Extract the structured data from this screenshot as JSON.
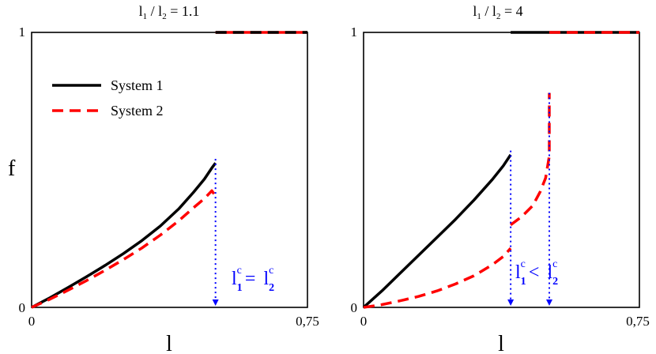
{
  "figure": {
    "ylabel": "f"
  },
  "chart_data": [
    {
      "type": "line",
      "title_base": "l",
      "title_sub1": "1",
      "title_mid": " / l",
      "title_sub2": "2",
      "title_tail": " = 1.1",
      "xlabel": "l",
      "ylabel": "f",
      "xlim": [
        0,
        0.75
      ],
      "ylim": [
        0,
        1
      ],
      "xticks": [
        "0",
        "0,75"
      ],
      "yticks": [
        "0",
        "1"
      ],
      "legend_position": "top-left",
      "series": [
        {
          "name": "System 1",
          "color": "#000000",
          "dash": "solid",
          "x": [
            0,
            0.05,
            0.1,
            0.15,
            0.2,
            0.25,
            0.3,
            0.35,
            0.4,
            0.44,
            0.47,
            0.49,
            0.5
          ],
          "y": [
            0,
            0.035,
            0.073,
            0.112,
            0.153,
            0.196,
            0.243,
            0.296,
            0.358,
            0.418,
            0.467,
            0.507,
            0.525
          ]
        },
        {
          "name": "System 2",
          "color": "#ff0000",
          "dash": "dashed",
          "x": [
            0,
            0.05,
            0.1,
            0.15,
            0.2,
            0.25,
            0.3,
            0.35,
            0.4,
            0.44,
            0.47,
            0.49,
            0.5
          ],
          "y": [
            0,
            0.03,
            0.063,
            0.098,
            0.135,
            0.174,
            0.216,
            0.263,
            0.315,
            0.362,
            0.396,
            0.424,
            0.405
          ]
        },
        {
          "name": "",
          "color": "#ff0000",
          "dash": "solid",
          "x": [
            0.5,
            0.75
          ],
          "y": [
            1,
            1
          ]
        },
        {
          "name": "",
          "color": "#000000",
          "dash": "dashed",
          "x": [
            0.5,
            0.75
          ],
          "y": [
            1,
            1
          ]
        }
      ],
      "markers": [
        {
          "x": 0.5,
          "y_from": 0.54,
          "color": "#0000ff"
        }
      ],
      "annotation": {
        "base1": "l",
        "sub1": "1",
        "sup1": "c",
        "op": "=",
        "base2": "l",
        "sub2": "2",
        "sup2": "c",
        "color": "#0000ff"
      }
    },
    {
      "type": "line",
      "title_base": "l",
      "title_sub1": "1",
      "title_mid": " / l",
      "title_sub2": "2",
      "title_tail": " = 4",
      "xlabel": "l",
      "ylabel": "f",
      "xlim": [
        0,
        0.75
      ],
      "ylim": [
        0,
        1
      ],
      "xticks": [
        "0",
        "0,75"
      ],
      "yticks": [
        "0",
        "1"
      ],
      "series": [
        {
          "name": "System 1",
          "color": "#000000",
          "dash": "solid",
          "x": [
            0,
            0.05,
            0.1,
            0.15,
            0.2,
            0.25,
            0.3,
            0.35,
            0.38,
            0.4
          ],
          "y": [
            0,
            0.06,
            0.125,
            0.19,
            0.255,
            0.32,
            0.39,
            0.465,
            0.515,
            0.555
          ]
        },
        {
          "name": "System 2",
          "color": "#ff0000",
          "dash": "dashed",
          "x": [
            0,
            0.05,
            0.1,
            0.15,
            0.2,
            0.25,
            0.3,
            0.35,
            0.38,
            0.4
          ],
          "y": [
            0,
            0.01,
            0.024,
            0.04,
            0.06,
            0.085,
            0.115,
            0.155,
            0.185,
            0.215
          ]
        },
        {
          "name": "",
          "color": "#ff0000",
          "dash": "dashed",
          "x": [
            0.4,
            0.43,
            0.46,
            0.48,
            0.495,
            0.505,
            0.505
          ],
          "y": [
            0.3,
            0.33,
            0.37,
            0.42,
            0.47,
            0.55,
            0.78
          ]
        },
        {
          "name": "",
          "color": "#000000",
          "dash": "solid",
          "x": [
            0.4,
            0.75
          ],
          "y": [
            1,
            1
          ]
        },
        {
          "name": "",
          "color": "#ff0000",
          "dash": "dashed",
          "x": [
            0.505,
            0.75
          ],
          "y": [
            1,
            1
          ]
        }
      ],
      "markers": [
        {
          "x": 0.4,
          "y_from": 0.57,
          "color": "#0000ff"
        },
        {
          "x": 0.505,
          "y_from": 0.78,
          "color": "#0000ff"
        }
      ],
      "annotation": {
        "base1": "l",
        "sub1": "1",
        "sup1": "c",
        "op": "<",
        "base2": "l",
        "sub2": "2",
        "sup2": "c",
        "color": "#0000ff"
      }
    }
  ]
}
